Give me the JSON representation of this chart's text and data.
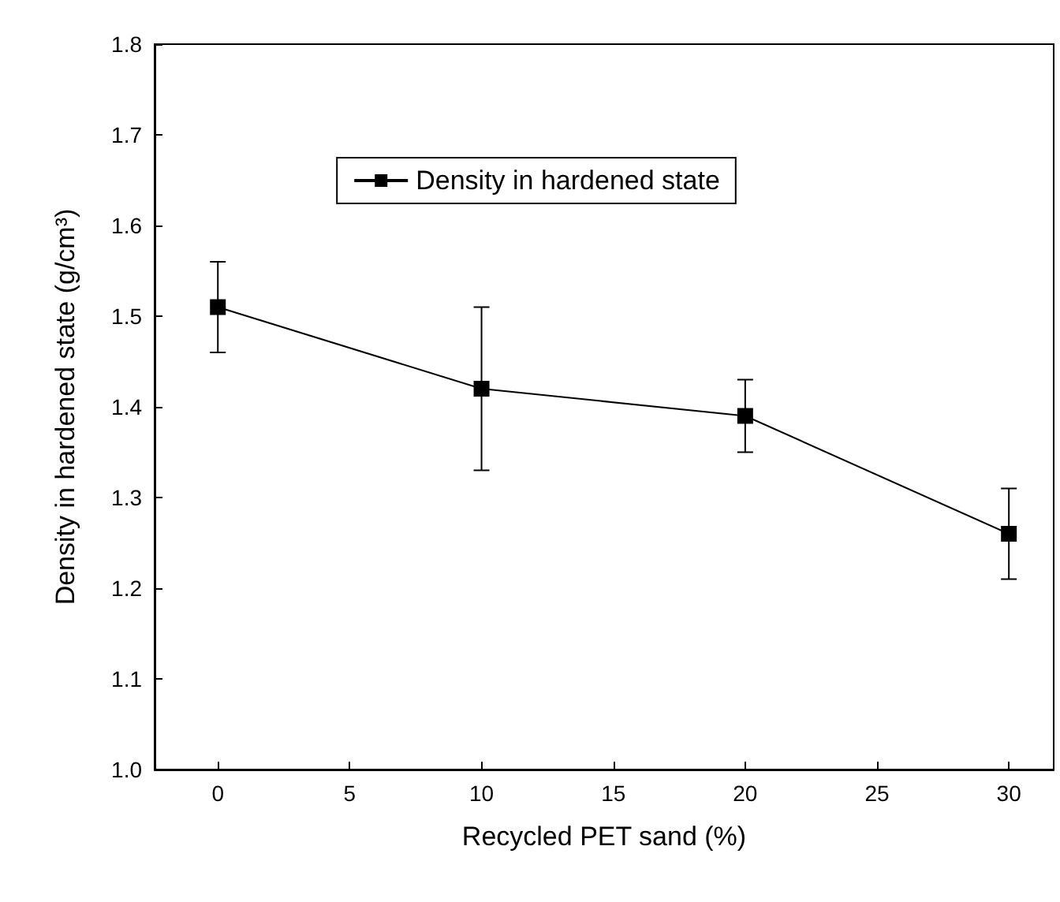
{
  "chart_data": {
    "type": "line",
    "xlabel": "Recycled PET sand (%)",
    "ylabel": "Density in hardened state (g/cm³)",
    "x": [
      0,
      10,
      20,
      30
    ],
    "series": [
      {
        "name": "Density in hardened state",
        "color": "#000000",
        "values": [
          1.51,
          1.42,
          1.39,
          1.26
        ],
        "errors": [
          0.05,
          0.09,
          0.04,
          0.05
        ]
      }
    ],
    "xlim": [
      -2.4,
      31.7
    ],
    "xticks": [
      0,
      5,
      10,
      15,
      20,
      25,
      30
    ],
    "ylim": [
      1.0,
      1.8
    ],
    "yticks": [
      {
        "value": 1.0,
        "label": "1.0"
      },
      {
        "value": 1.1,
        "label": "1.1"
      },
      {
        "value": 1.2,
        "label": "1.2"
      },
      {
        "value": 1.3,
        "label": "1.3"
      },
      {
        "value": 1.4,
        "label": "1.4"
      },
      {
        "value": 1.5,
        "label": "1.5"
      },
      {
        "value": 1.6,
        "label": "1.6"
      },
      {
        "value": 1.7,
        "label": "1.7"
      },
      {
        "value": 1.8,
        "label": "1.8"
      }
    ],
    "grid": false,
    "legend": "top",
    "marker": "square",
    "line_style": "solid"
  }
}
